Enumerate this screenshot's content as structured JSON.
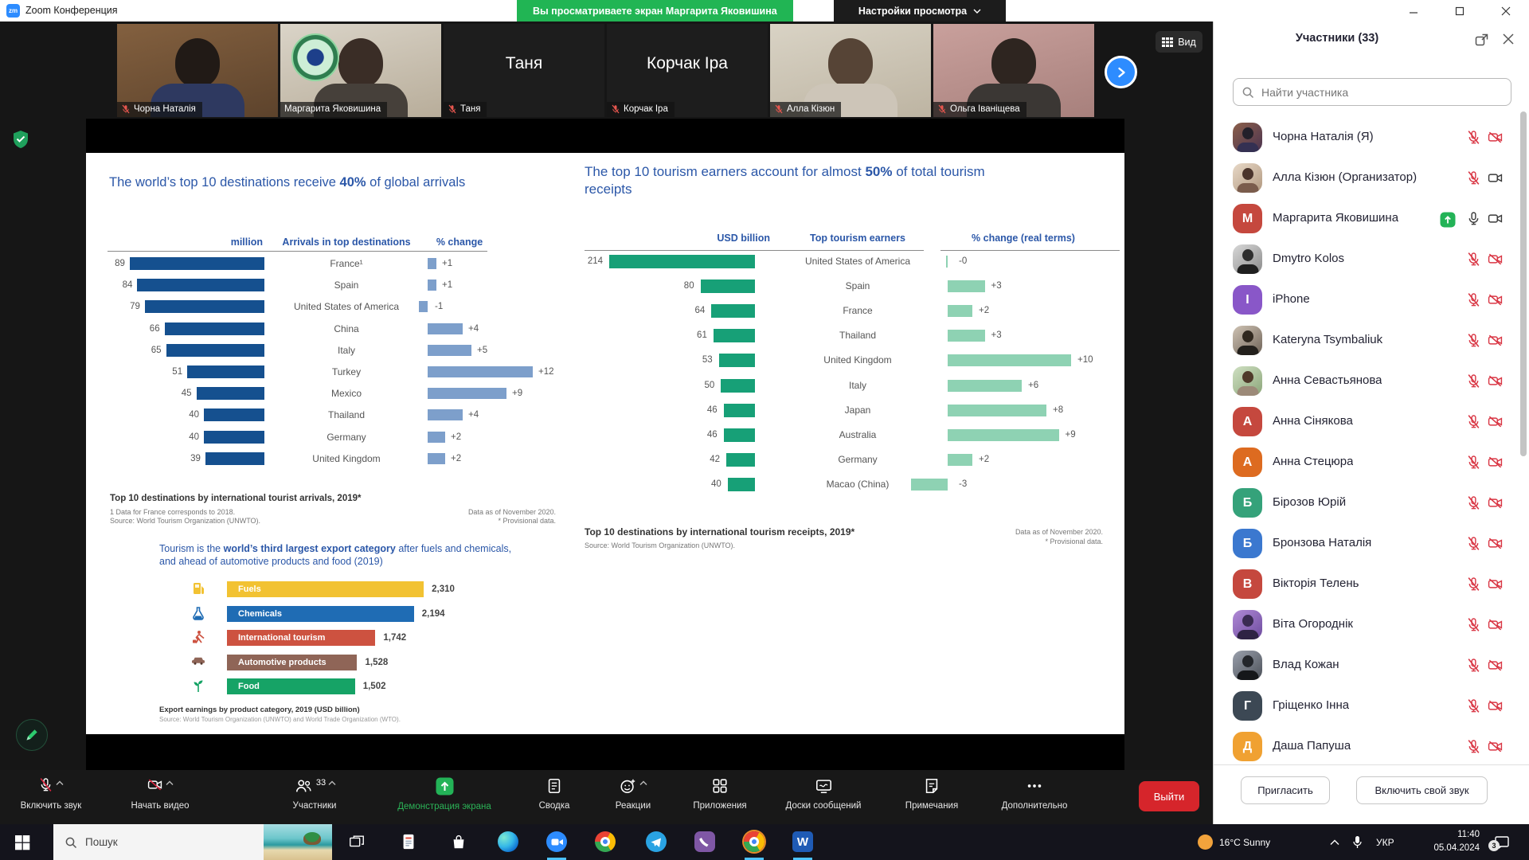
{
  "titlebar": {
    "app_icon_glyph": "zm",
    "app_title": "Zoom Конференция",
    "banner_text": "Вы просматриваете экран Маргарита Яковишина",
    "view_settings_label": "Настройки просмотра",
    "window_controls": [
      "minimize",
      "maximize",
      "close"
    ]
  },
  "video_strip": {
    "view_button_label": "Вид",
    "tiles": [
      {
        "name": "Чорна Наталія",
        "video": "photo",
        "variant": "p1",
        "muted": true,
        "speaking": false
      },
      {
        "name": "Маргарита Яковишина",
        "video": "photo",
        "variant": "p2",
        "muted": false,
        "speaking": true
      },
      {
        "name": "Таня",
        "video": "name",
        "muted": true
      },
      {
        "name": "Корчак Іра",
        "video": "name",
        "muted": true
      },
      {
        "name": "Алла Кізюн",
        "video": "photo",
        "variant": "p3",
        "muted": true,
        "speaking": false
      },
      {
        "name": "Ольга Іваніщева",
        "video": "photo",
        "variant": "p4",
        "muted": true,
        "speaking": false
      }
    ]
  },
  "slide": {
    "arrivals_chart": {
      "title": {
        "pre": "The world’s top 10 destinations receive ",
        "bold": "40%",
        "post": " of global arrivals"
      },
      "columns": {
        "value": "million",
        "label": "Arrivals in top destinations",
        "change": "% change"
      },
      "rows": [
        {
          "value": 89,
          "country": "France¹",
          "change": 1,
          "change_label": "+1"
        },
        {
          "value": 84,
          "country": "Spain",
          "change": 1,
          "change_label": "+1"
        },
        {
          "value": 79,
          "country": "United States of America",
          "change": -1,
          "change_label": "-1"
        },
        {
          "value": 66,
          "country": "China",
          "change": 4,
          "change_label": "+4"
        },
        {
          "value": 65,
          "country": "Italy",
          "change": 5,
          "change_label": "+5"
        },
        {
          "value": 51,
          "country": "Turkey",
          "change": 12,
          "change_label": "+12"
        },
        {
          "value": 45,
          "country": "Mexico",
          "change": 9,
          "change_label": "+9"
        },
        {
          "value": 40,
          "country": "Thailand",
          "change": 4,
          "change_label": "+4"
        },
        {
          "value": 40,
          "country": "Germany",
          "change": 2,
          "change_label": "+2"
        },
        {
          "value": 39,
          "country": "United Kingdom",
          "change": 2,
          "change_label": "+2"
        }
      ],
      "footnote_title": "Top 10 destinations by international tourist arrivals, 2019*",
      "footnote_line1": "1   Data for France corresponds to 2018.",
      "footnote_source": "Source: World Tourism Organization (UNWTO).",
      "note_right_line1": "Data as of November 2020.",
      "note_right_line2": "* Provisional data."
    },
    "earners_chart": {
      "title": {
        "pre": "The top 10 tourism earners account for almost ",
        "bold": "50%",
        "post": " of total tourism receipts"
      },
      "columns": {
        "value": "USD billion",
        "label": "Top tourism earners",
        "change": "% change (real terms)"
      },
      "rows": [
        {
          "value": 214,
          "country": "United States of America",
          "change": 0,
          "change_label": "-0"
        },
        {
          "value": 80,
          "country": "Spain",
          "change": 3,
          "change_label": "+3"
        },
        {
          "value": 64,
          "country": "France",
          "change": 2,
          "change_label": "+2"
        },
        {
          "value": 61,
          "country": "Thailand",
          "change": 3,
          "change_label": "+3"
        },
        {
          "value": 53,
          "country": "United Kingdom",
          "change": 10,
          "change_label": "+10"
        },
        {
          "value": 50,
          "country": "Italy",
          "change": 6,
          "change_label": "+6"
        },
        {
          "value": 46,
          "country": "Japan",
          "change": 8,
          "change_label": "+8"
        },
        {
          "value": 46,
          "country": "Australia",
          "change": 9,
          "change_label": "+9"
        },
        {
          "value": 42,
          "country": "Germany",
          "change": 2,
          "change_label": "+2"
        },
        {
          "value": 40,
          "country": "Macao (China)",
          "change": -3,
          "change_label": "-3"
        }
      ],
      "footnote_title": "Top 10 destinations by international tourism receipts, 2019*",
      "footnote_source": "Source: World Tourism Organization (UNWTO).",
      "note_right_line1": "Data as of November 2020.",
      "note_right_line2": "* Provisional data."
    },
    "export_chart": {
      "title": {
        "pre": "Tourism is the ",
        "bold": "world’s third largest export category",
        "post": " after fuels and chemicals, and ahead of automotive products and food (2019)"
      },
      "rows": [
        {
          "label": "Fuels",
          "value": 2310,
          "value_label": "2,310",
          "color": "#f2c232",
          "icon": "fuel-pump-icon"
        },
        {
          "label": "Chemicals",
          "value": 2194,
          "value_label": "2,194",
          "color": "#1f6cb4",
          "icon": "flask-icon"
        },
        {
          "label": "International tourism",
          "value": 1742,
          "value_label": "1,742",
          "color": "#cd5240",
          "icon": "traveler-icon"
        },
        {
          "label": "Automotive products",
          "value": 1528,
          "value_label": "1,528",
          "color": "#8f6557",
          "icon": "car-icon"
        },
        {
          "label": "Food",
          "value": 1502,
          "value_label": "1,502",
          "color": "#16a366",
          "icon": "plant-icon"
        }
      ],
      "footnote_title": "Export earnings by product category, 2019 (USD billion)",
      "footnote_source": "Source: World Tourism Organization (UNWTO) and World Trade Organization (WTO)."
    }
  },
  "participants_panel": {
    "title": "Участники (33)",
    "search_placeholder": "Найти участника",
    "participants": [
      {
        "name": "Чорна Наталія (Я)",
        "avatar": "photo",
        "variant": "a1",
        "mic": "off",
        "cam": "off",
        "sharing": false
      },
      {
        "name": "Алла Кізюн (Организатор)",
        "avatar": "photo",
        "variant": "a2",
        "mic": "off",
        "cam": "on",
        "sharing": false
      },
      {
        "name": "Маргарита Яковишина",
        "avatar": "letter",
        "letter": "М",
        "color": "#c5483e",
        "mic": "on",
        "cam": "on",
        "sharing": true
      },
      {
        "name": "Dmytro Kolos",
        "avatar": "photo",
        "variant": "a3",
        "mic": "off",
        "cam": "off",
        "sharing": false
      },
      {
        "name": "iPhone",
        "avatar": "letter",
        "letter": "I",
        "color": "#8957c8",
        "mic": "off",
        "cam": "off",
        "sharing": false
      },
      {
        "name": "Kateryna Tsymbaliuk",
        "avatar": "photo",
        "variant": "a4",
        "mic": "off",
        "cam": "off",
        "sharing": false
      },
      {
        "name": "Анна Севастьянова",
        "avatar": "photo",
        "variant": "a5",
        "mic": "off",
        "cam": "off",
        "sharing": false
      },
      {
        "name": "Анна Сінякова",
        "avatar": "letter",
        "letter": "А",
        "color": "#c5483e",
        "mic": "off",
        "cam": "off",
        "sharing": false
      },
      {
        "name": "Анна Стецюра",
        "avatar": "letter",
        "letter": "А",
        "color": "#dd6b20",
        "mic": "off",
        "cam": "off",
        "sharing": false
      },
      {
        "name": "Бірозов Юрій",
        "avatar": "letter",
        "letter": "Б",
        "color": "#35a27a",
        "mic": "off",
        "cam": "off",
        "sharing": false
      },
      {
        "name": "Бронзова Наталія",
        "avatar": "letter",
        "letter": "Б",
        "color": "#3b78cf",
        "mic": "off",
        "cam": "off",
        "sharing": false
      },
      {
        "name": "Вікторія Телень",
        "avatar": "letter",
        "letter": "В",
        "color": "#c5483e",
        "mic": "off",
        "cam": "off",
        "sharing": false
      },
      {
        "name": "Віта Огороднік",
        "avatar": "photo",
        "variant": "a6",
        "mic": "off",
        "cam": "off",
        "sharing": false
      },
      {
        "name": "Влад Кожан",
        "avatar": "photo",
        "variant": "a7",
        "mic": "off",
        "cam": "off",
        "sharing": false
      },
      {
        "name": "Гріщенко Інна",
        "avatar": "letter",
        "letter": "Г",
        "color": "#3c4854",
        "mic": "off",
        "cam": "off",
        "sharing": false
      },
      {
        "name": "Даша Папуша",
        "avatar": "letter",
        "letter": "Д",
        "color": "#f0a132",
        "mic": "off",
        "cam": "off",
        "sharing": false
      }
    ],
    "invite_button": "Пригласить",
    "unmute_button": "Включить свой звук"
  },
  "toolbar": {
    "items": [
      {
        "label": "Включить звук",
        "icon": "mic-off-icon",
        "chevron": true
      },
      {
        "label": "Начать видео",
        "icon": "camera-off-icon",
        "chevron": true
      },
      {
        "label": "Участники",
        "icon": "participants-icon",
        "badge": "33",
        "chevron": true
      },
      {
        "label": "Демонстрация экрана",
        "icon": "screen-share-icon",
        "active": true
      },
      {
        "label": "Сводка",
        "icon": "summary-icon"
      },
      {
        "label": "Реакции",
        "icon": "reactions-icon",
        "chevron": true
      },
      {
        "label": "Приложения",
        "icon": "apps-icon"
      },
      {
        "label": "Доски сообщений",
        "icon": "whiteboards-icon"
      },
      {
        "label": "Примечания",
        "icon": "notes-icon"
      },
      {
        "label": "Дополнительно",
        "icon": "more-icon"
      }
    ],
    "leave_button": "Выйти"
  },
  "taskbar": {
    "search_label": "Пошук",
    "apps": [
      "task-view",
      "document",
      "store",
      "edge",
      "zoom",
      "chrome",
      "telegram",
      "viber",
      "chrome-profile",
      "word"
    ],
    "active_apps": [
      "zoom",
      "chrome-profile",
      "word"
    ],
    "word_glyph": "W",
    "weather_label": "16°C Sunny",
    "language": "УКР",
    "time": "11:40",
    "date": "05.04.2024",
    "notification_badge": "3"
  }
}
